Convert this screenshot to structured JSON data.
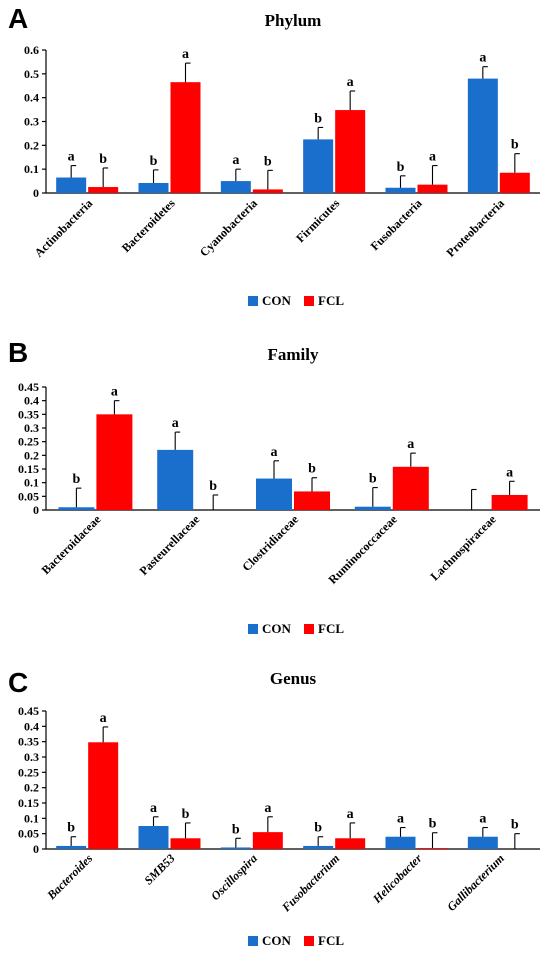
{
  "chart_data": [
    {
      "type": "bar",
      "panel": "A",
      "title": "Phylum",
      "categories": [
        "Actinobacteria",
        "Bacteroidetes",
        "Cyanobacteria",
        "Firmicutes",
        "Fusobacteria",
        "Proteobacteria"
      ],
      "italic_categories": false,
      "ylim": [
        0,
        0.6
      ],
      "yticks": [
        "0",
        "0.1",
        "0.2",
        "0.3",
        "0.4",
        "0.5",
        "0.6"
      ],
      "series": [
        {
          "name": "CON",
          "color": "#1a6fcc",
          "values": [
            0.065,
            0.042,
            0.05,
            0.225,
            0.022,
            0.48
          ],
          "errors": [
            0.05,
            0.055,
            0.05,
            0.05,
            0.05,
            0.05
          ],
          "sig": [
            "a",
            "b",
            "a",
            "b",
            "b",
            "a"
          ]
        },
        {
          "name": "FCL",
          "color": "#ff0000",
          "values": [
            0.025,
            0.465,
            0.015,
            0.348,
            0.035,
            0.085
          ],
          "errors": [
            0.08,
            0.08,
            0.08,
            0.08,
            0.08,
            0.08
          ],
          "sig": [
            "b",
            "a",
            "b",
            "a",
            "a",
            "b"
          ]
        }
      ],
      "legend": [
        "CON",
        "FCL"
      ],
      "legend_position": "bottom-center"
    },
    {
      "type": "bar",
      "panel": "B",
      "title": "Family",
      "categories": [
        "Bacteroidaceae",
        "Pasteurellaceae",
        "Clostridiaceae",
        "Ruminococcaceae",
        "Lachnospiraceae"
      ],
      "italic_categories": false,
      "ylim": [
        0,
        0.45
      ],
      "yticks": [
        "0",
        "0.05",
        "0.1",
        "0.15",
        "0.2",
        "0.25",
        "0.3",
        "0.35",
        "0.4",
        "0.45"
      ],
      "series": [
        {
          "name": "CON",
          "color": "#1a6fcc",
          "values": [
            0.01,
            0.22,
            0.115,
            0.012,
            0.0
          ],
          "errors": [
            0.07,
            0.065,
            0.065,
            0.07,
            0.075
          ],
          "sig": [
            "b",
            "a",
            "a",
            "b",
            ""
          ]
        },
        {
          "name": "FCL",
          "color": "#ff0000",
          "values": [
            0.35,
            0.0,
            0.068,
            0.158,
            0.055
          ],
          "errors": [
            0.05,
            0.055,
            0.05,
            0.05,
            0.05
          ],
          "sig": [
            "a",
            "b",
            "b",
            "a",
            "a"
          ]
        }
      ],
      "legend": [
        "CON",
        "FCL"
      ],
      "legend_position": "bottom-center"
    },
    {
      "type": "bar",
      "panel": "C",
      "title": "Genus",
      "categories": [
        "Bacteroides",
        "SMB53",
        "Oscillospira",
        "Fusobacterium",
        "Helicobacter",
        "Gallibacterium"
      ],
      "italic_categories": true,
      "ylim": [
        0,
        0.45
      ],
      "yticks": [
        "0",
        "0.05",
        "0.1",
        "0.15",
        "0.2",
        "0.25",
        "0.3",
        "0.35",
        "0.4",
        "0.45"
      ],
      "series": [
        {
          "name": "CON",
          "color": "#1a6fcc",
          "values": [
            0.01,
            0.075,
            0.005,
            0.01,
            0.04,
            0.04
          ],
          "errors": [
            0.03,
            0.03,
            0.03,
            0.03,
            0.03,
            0.03
          ],
          "sig": [
            "b",
            "a",
            "b",
            "b",
            "a",
            "a"
          ]
        },
        {
          "name": "FCL",
          "color": "#ff0000",
          "values": [
            0.348,
            0.035,
            0.055,
            0.035,
            0.003,
            0.0
          ],
          "errors": [
            0.05,
            0.05,
            0.05,
            0.05,
            0.05,
            0.05
          ],
          "sig": [
            "a",
            "b",
            "a",
            "a",
            "b",
            "b"
          ]
        }
      ],
      "legend": [
        "CON",
        "FCL"
      ],
      "legend_position": "bottom-center"
    }
  ]
}
